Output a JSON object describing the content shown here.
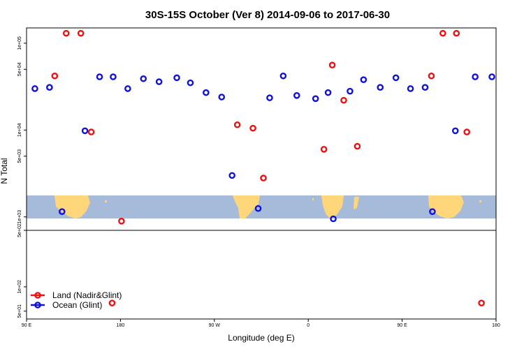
{
  "chart_data": {
    "type": "scatter",
    "title": "30S-15S October (Ver 8)   2014-09-06 to 2017-06-30",
    "xlabel": "Longitude (deg E)",
    "ylabel": "N Total",
    "x_scale": "longitude",
    "y_scale": "log",
    "xlim": [
      90,
      540
    ],
    "upper_ylim": [
      700,
      150000
    ],
    "lower_ylim": [
      40,
      500
    ],
    "x_ticks": [
      {
        "value": 90,
        "label": "90 E"
      },
      {
        "value": 180,
        "label": "180"
      },
      {
        "value": 270,
        "label": "90 W"
      },
      {
        "value": 360,
        "label": "0"
      },
      {
        "value": 450,
        "label": "90 E"
      },
      {
        "value": 540,
        "label": "180"
      }
    ],
    "upper_y_ticks": [
      {
        "value": 1000,
        "label": "1e+03"
      },
      {
        "value": 5000,
        "label": "5e+03"
      },
      {
        "value": 10000,
        "label": "1e+04"
      },
      {
        "value": 50000,
        "label": "5e+04"
      },
      {
        "value": 100000,
        "label": "1e+05"
      }
    ],
    "lower_y_ticks": [
      {
        "value": 50,
        "label": "5e+01"
      },
      {
        "value": 100,
        "label": "1e+02"
      },
      {
        "value": 500,
        "label": "5e+02"
      }
    ],
    "legend": {
      "position": "bottom-left",
      "entries": [
        {
          "label": "Land (Nadir&Glint)",
          "color": "#ee1111"
        },
        {
          "label": "Ocean (Glint)",
          "color": "#1111dd"
        }
      ]
    },
    "series": [
      {
        "name": "Land (Nadir&Glint)",
        "color": "#ee1111",
        "points": [
          {
            "x": 117,
            "y": 42000
          },
          {
            "x": 128,
            "y": 130000
          },
          {
            "x": 142,
            "y": 130000
          },
          {
            "x": 152,
            "y": 9500
          },
          {
            "x": 181,
            "y": 650
          },
          {
            "x": 292,
            "y": 11500
          },
          {
            "x": 307,
            "y": 10500
          },
          {
            "x": 317,
            "y": 2800
          },
          {
            "x": 375,
            "y": 6000
          },
          {
            "x": 383,
            "y": 56000
          },
          {
            "x": 394,
            "y": 22000
          },
          {
            "x": 407,
            "y": 6500
          },
          {
            "x": 478,
            "y": 42000
          },
          {
            "x": 489,
            "y": 130000
          },
          {
            "x": 502,
            "y": 130000
          },
          {
            "x": 512,
            "y": 9500
          },
          {
            "x": 172,
            "y": 63
          },
          {
            "x": 526,
            "y": 63
          }
        ]
      },
      {
        "name": "Ocean (Glint)",
        "color": "#1111dd",
        "points": [
          {
            "x": 98,
            "y": 30000
          },
          {
            "x": 112,
            "y": 31000
          },
          {
            "x": 124,
            "y": 1150
          },
          {
            "x": 146,
            "y": 9800
          },
          {
            "x": 160,
            "y": 41000
          },
          {
            "x": 173,
            "y": 41000
          },
          {
            "x": 187,
            "y": 30000
          },
          {
            "x": 202,
            "y": 39000
          },
          {
            "x": 217,
            "y": 36000
          },
          {
            "x": 234,
            "y": 40000
          },
          {
            "x": 247,
            "y": 35000
          },
          {
            "x": 262,
            "y": 27000
          },
          {
            "x": 277,
            "y": 24000
          },
          {
            "x": 287,
            "y": 3000
          },
          {
            "x": 312,
            "y": 1250
          },
          {
            "x": 323,
            "y": 23500
          },
          {
            "x": 336,
            "y": 42000
          },
          {
            "x": 349,
            "y": 25000
          },
          {
            "x": 367,
            "y": 23000
          },
          {
            "x": 384,
            "y": 950
          },
          {
            "x": 379,
            "y": 27000
          },
          {
            "x": 400,
            "y": 28000
          },
          {
            "x": 413,
            "y": 38000
          },
          {
            "x": 429,
            "y": 31000
          },
          {
            "x": 444,
            "y": 40000
          },
          {
            "x": 458,
            "y": 30000
          },
          {
            "x": 472,
            "y": 31000
          },
          {
            "x": 479,
            "y": 1150
          },
          {
            "x": 501,
            "y": 9800
          },
          {
            "x": 520,
            "y": 41000
          },
          {
            "x": 536,
            "y": 41000
          }
        ]
      }
    ]
  }
}
